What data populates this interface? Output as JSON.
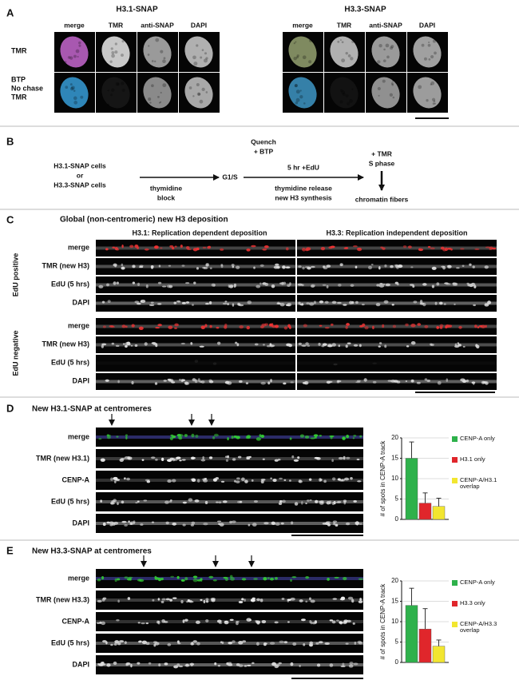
{
  "panel_a": {
    "label": "A",
    "groups": [
      {
        "title": "H3.1-SNAP",
        "columns": [
          "merge",
          "TMR",
          "anti-SNAP",
          "DAPI"
        ]
      },
      {
        "title": "H3.3-SNAP",
        "columns": [
          "merge",
          "TMR",
          "anti-SNAP",
          "DAPI"
        ]
      }
    ],
    "rows": [
      [
        "TMR"
      ],
      [
        "BTP",
        "No chase",
        "TMR"
      ]
    ]
  },
  "panel_b": {
    "label": "B",
    "cells": [
      "H3.1-SNAP cells",
      "or",
      "H3.3-SNAP cells"
    ],
    "block": [
      "thymidine",
      "block"
    ],
    "g1s": "G1/S",
    "quench": [
      "Quench",
      "+ BTP"
    ],
    "edu": "5 hr +EdU",
    "release": [
      "thymidine release",
      "new H3 synthesis"
    ],
    "tmr": [
      "+ TMR",
      "S phase"
    ],
    "fibers": "chromatin fibers"
  },
  "panel_c": {
    "label": "C",
    "title": "Global (non-centromeric) new H3 deposition",
    "columns": [
      "H3.1: Replication dependent deposition",
      "H3.3: Replication independent deposition"
    ],
    "groups": [
      "EdU positive",
      "EdU negative"
    ],
    "rows": [
      "merge",
      "TMR (new H3)",
      "EdU (5 hrs)",
      "DAPI"
    ]
  },
  "panel_d": {
    "label": "D",
    "title": "New H3.1-SNAP at centromeres",
    "rows": [
      "merge",
      "TMR (new H3.1)",
      "CENP-A",
      "EdU (5 hrs)",
      "DAPI"
    ]
  },
  "panel_e": {
    "label": "E",
    "title": "New H3.3-SNAP at centromeres",
    "rows": [
      "merge",
      "TMR (new H3.3)",
      "CENP-A",
      "EdU (5 hrs)",
      "DAPI"
    ]
  },
  "chart_data": [
    {
      "type": "bar",
      "ylabel": "# of spots in CENP-A track",
      "ylim": [
        0,
        20
      ],
      "yticks": [
        0,
        5,
        10,
        15,
        20
      ],
      "grid": true,
      "series": [
        {
          "name": "CENP-A only",
          "color": "#2eb14b",
          "values": [
            15
          ],
          "errors": [
            4
          ]
        },
        {
          "name": "H3.1 only",
          "color": "#e0262b",
          "values": [
            4
          ],
          "errors": [
            2.5
          ]
        },
        {
          "name": "CENP-A/H3.1 overlap",
          "color": "#f2e630",
          "values": [
            3.2
          ],
          "errors": [
            2
          ]
        }
      ]
    },
    {
      "type": "bar",
      "ylabel": "# of spots in CENP-A track",
      "ylim": [
        0,
        20
      ],
      "yticks": [
        0,
        5,
        10,
        15,
        20
      ],
      "grid": true,
      "series": [
        {
          "name": "CENP-A only",
          "color": "#2eb14b",
          "values": [
            14
          ],
          "errors": [
            4.2
          ]
        },
        {
          "name": "H3.3 only",
          "color": "#e0262b",
          "values": [
            8.2
          ],
          "errors": [
            5
          ]
        },
        {
          "name": "CENP-A/H3.3 overlap",
          "color": "#f2e630",
          "values": [
            4
          ],
          "errors": [
            1.5
          ]
        }
      ]
    }
  ]
}
